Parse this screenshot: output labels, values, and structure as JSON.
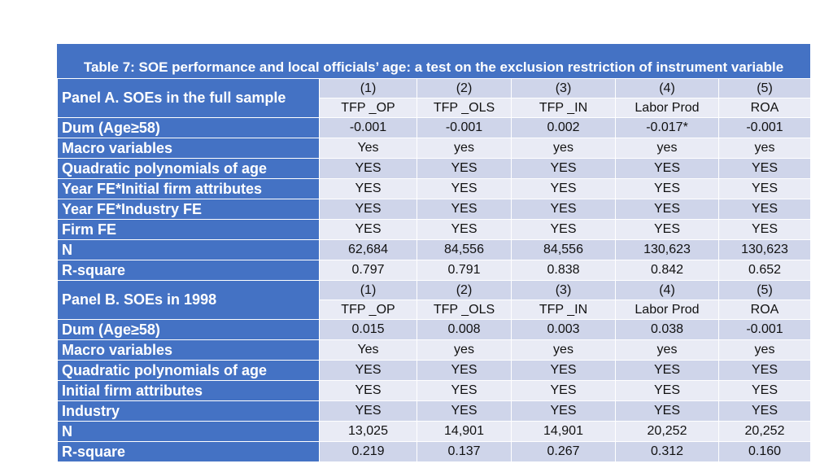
{
  "title": "Table 7: SOE performance and local officials’ age: a test on the exclusion restriction of instrument variable",
  "panel_a": {
    "label": "Panel A. SOEs in the full sample",
    "col_numbers": [
      "(1)",
      "(2)",
      "(3)",
      "(4)",
      "(5)"
    ],
    "col_names": [
      "TFP _OP",
      "TFP _OLS",
      "TFP _IN",
      "Labor Prod",
      "ROA"
    ],
    "rows": [
      {
        "label": "Dum (Age≥58)",
        "values": [
          "-0.001",
          "-0.001",
          "0.002",
          "-0.017*",
          "-0.001"
        ]
      },
      {
        "label": "Macro variables",
        "values": [
          "Yes",
          "yes",
          "yes",
          "yes",
          "yes"
        ]
      },
      {
        "label": "Quadratic polynomials of age",
        "values": [
          "YES",
          "YES",
          "YES",
          "YES",
          "YES"
        ]
      },
      {
        "label": "Year FE*Initial firm attributes",
        "values": [
          "YES",
          "YES",
          "YES",
          "YES",
          "YES"
        ]
      },
      {
        "label": "Year FE*Industry FE",
        "values": [
          "YES",
          "YES",
          "YES",
          "YES",
          "YES"
        ]
      },
      {
        "label": "Firm FE",
        "values": [
          "YES",
          "YES",
          "YES",
          "YES",
          "YES"
        ]
      },
      {
        "label": "N",
        "values": [
          "62,684",
          "84,556",
          "84,556",
          "130,623",
          "130,623"
        ]
      },
      {
        "label": "R-square",
        "values": [
          "0.797",
          "0.791",
          "0.838",
          "0.842",
          "0.652"
        ]
      }
    ]
  },
  "panel_b": {
    "label": "Panel B. SOEs in 1998",
    "col_numbers": [
      "(1)",
      "(2)",
      "(3)",
      "(4)",
      "(5)"
    ],
    "col_names": [
      "TFP _OP",
      "TFP _OLS",
      "TFP _IN",
      "Labor Prod",
      "ROA"
    ],
    "rows": [
      {
        "label": "Dum (Age≥58)",
        "values": [
          "0.015",
          "0.008",
          "0.003",
          "0.038",
          "-0.001"
        ]
      },
      {
        "label": "Macro variables",
        "values": [
          "Yes",
          "yes",
          "yes",
          "yes",
          "yes"
        ]
      },
      {
        "label": "Quadratic polynomials of age",
        "values": [
          "YES",
          "YES",
          "YES",
          "YES",
          "YES"
        ]
      },
      {
        "label": "Initial firm attributes",
        "values": [
          "YES",
          "YES",
          "YES",
          "YES",
          "YES"
        ]
      },
      {
        "label": "Industry",
        "values": [
          "YES",
          "YES",
          "YES",
          "YES",
          "YES"
        ]
      },
      {
        "label": "N",
        "values": [
          "13,025",
          "14,901",
          "14,901",
          "20,252",
          "20,252"
        ]
      },
      {
        "label": "R-square",
        "values": [
          "0.219",
          "0.137",
          "0.267",
          "0.312",
          "0.160"
        ]
      }
    ]
  },
  "colors": {
    "header_blue": "#4472c4",
    "row_dark": "#cfd5ea",
    "row_light": "#e9ebf5"
  }
}
